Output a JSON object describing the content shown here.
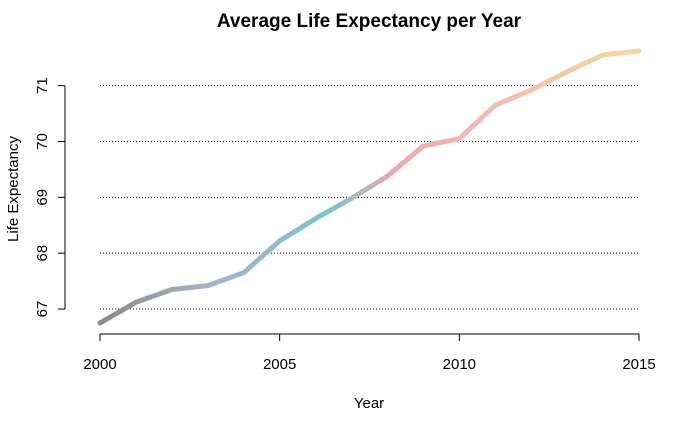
{
  "chart_data": {
    "type": "line",
    "title": "Average Life Expectancy per Year",
    "xlabel": "Year",
    "ylabel": "Life Expectancy",
    "x": [
      2000,
      2001,
      2002,
      2003,
      2004,
      2005,
      2006,
      2007,
      2008,
      2009,
      2010,
      2011,
      2012,
      2013,
      2014,
      2015
    ],
    "y": [
      66.75,
      67.12,
      67.35,
      67.42,
      67.65,
      68.22,
      68.62,
      68.98,
      69.38,
      69.92,
      70.05,
      70.65,
      70.92,
      71.25,
      71.55,
      71.62
    ],
    "xlim": [
      2000,
      2015
    ],
    "ylim": [
      66.75,
      71.62
    ],
    "xticks": [
      2000,
      2005,
      2010,
      2015
    ],
    "yticks": [
      67,
      68,
      69,
      70,
      71
    ],
    "grid": "horizontal dotted",
    "line_gradient": [
      "#8a8a8a",
      "#a7b3c2",
      "#7ec4cd",
      "#f2a7b0",
      "#f0bfb0",
      "#eedb9c"
    ],
    "line_color_stops": [
      0,
      0.2,
      0.42,
      0.55,
      0.75,
      1.0
    ]
  }
}
